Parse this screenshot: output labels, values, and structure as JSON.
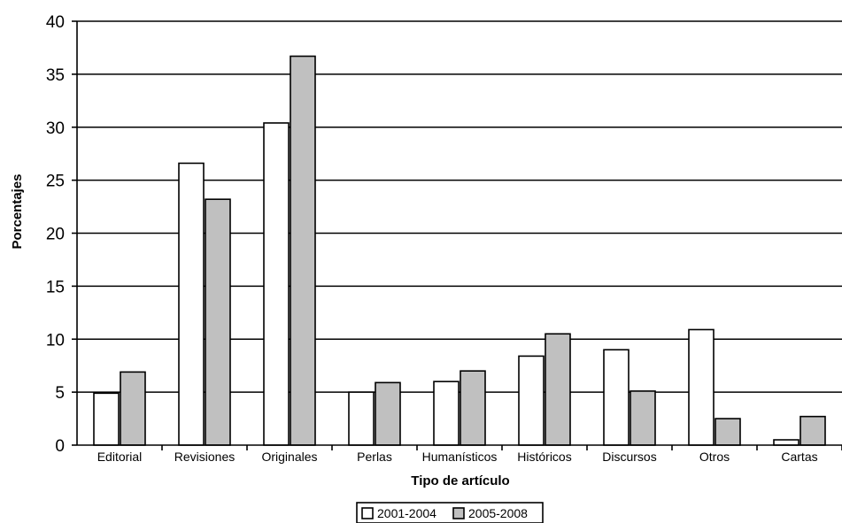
{
  "chart_data": {
    "type": "bar",
    "title": "",
    "xlabel": "Tipo de artículo",
    "ylabel": "Porcentajes",
    "ylim": [
      0,
      40
    ],
    "yticks": [
      0,
      5,
      10,
      15,
      20,
      25,
      30,
      35,
      40
    ],
    "grid": "horizontal",
    "legend_position": "bottom",
    "categories": [
      "Editorial",
      "Revisiones",
      "Originales",
      "Perlas",
      "Humanísticos",
      "Históricos",
      "Discursos",
      "Otros",
      "Cartas"
    ],
    "series": [
      {
        "name": "2001-2004",
        "color": "#ffffff",
        "values": [
          4.9,
          26.6,
          30.4,
          5.0,
          6.0,
          8.4,
          9.0,
          10.9,
          0.5
        ]
      },
      {
        "name": "2005-2008",
        "color": "#c0c0c0",
        "values": [
          6.9,
          23.2,
          36.7,
          5.9,
          7.0,
          10.5,
          5.1,
          2.5,
          2.7
        ]
      }
    ]
  }
}
